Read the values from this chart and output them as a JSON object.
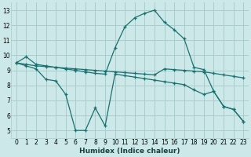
{
  "xlabel": "Humidex (Indice chaleur)",
  "background_color": "#cce8e8",
  "grid_color": "#aacccc",
  "line_color": "#1a7070",
  "xlim": [
    -0.5,
    23.5
  ],
  "ylim": [
    4.5,
    13.5
  ],
  "xticks": [
    0,
    1,
    2,
    3,
    4,
    5,
    6,
    7,
    8,
    9,
    10,
    11,
    12,
    13,
    14,
    15,
    16,
    17,
    18,
    19,
    20,
    21,
    22,
    23
  ],
  "yticks": [
    5,
    6,
    7,
    8,
    9,
    10,
    11,
    12,
    13
  ],
  "curve1_x": [
    0,
    1,
    2,
    3,
    4,
    5,
    6,
    7,
    8,
    9,
    10,
    11,
    12,
    13,
    14,
    15,
    16,
    17,
    18,
    19,
    20,
    21,
    22,
    23
  ],
  "curve1_y": [
    9.5,
    9.9,
    9.4,
    9.3,
    9.2,
    9.1,
    9.0,
    8.9,
    8.8,
    8.75,
    10.5,
    11.9,
    12.5,
    12.8,
    13.0,
    12.2,
    11.7,
    11.1,
    9.2,
    9.05,
    7.6,
    6.6,
    6.4,
    5.6
  ],
  "curve2_x": [
    0,
    1,
    2,
    3,
    4,
    5,
    6,
    7,
    8,
    9,
    10,
    11,
    12,
    13,
    14,
    15,
    16,
    17,
    18,
    19,
    20,
    21,
    22,
    23
  ],
  "curve2_y": [
    9.5,
    9.4,
    9.3,
    9.25,
    9.2,
    9.15,
    9.1,
    9.05,
    9.0,
    8.95,
    8.9,
    8.85,
    8.8,
    8.75,
    8.7,
    9.1,
    9.05,
    9.0,
    8.95,
    8.9,
    8.8,
    8.7,
    8.6,
    8.5
  ],
  "curve3_x": [
    0,
    1,
    2,
    3,
    4,
    5,
    6,
    7,
    8,
    9,
    10,
    11,
    12,
    13,
    14,
    15,
    16,
    17,
    18,
    19,
    20,
    21,
    22,
    23
  ],
  "curve3_y": [
    9.5,
    9.3,
    9.1,
    8.4,
    8.3,
    7.4,
    5.0,
    5.0,
    6.5,
    5.3,
    8.75,
    8.65,
    8.55,
    8.45,
    8.35,
    8.25,
    8.15,
    8.05,
    7.7,
    7.4,
    7.6,
    6.6,
    6.4,
    5.6
  ]
}
